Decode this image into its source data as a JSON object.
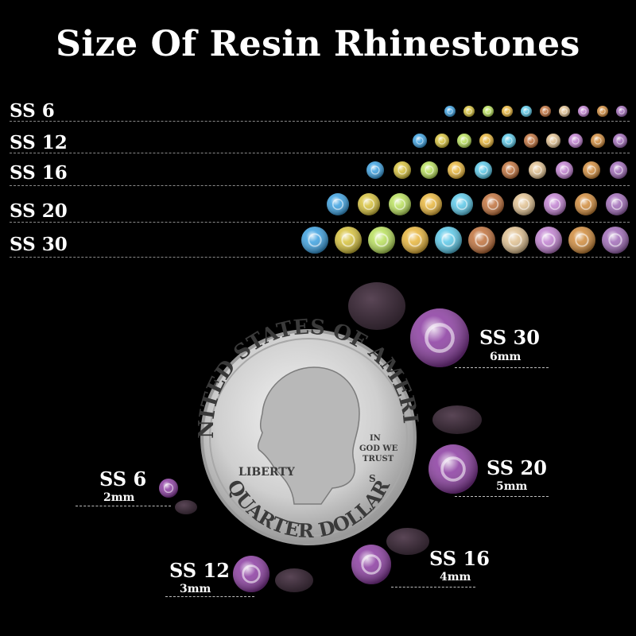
{
  "title": "Size Of Resin Rhinestones",
  "rows": [
    {
      "label": "SS 6"
    },
    {
      "label": "SS 12"
    },
    {
      "label": "SS 16"
    },
    {
      "label": "SS 20"
    },
    {
      "label": "SS 30"
    }
  ],
  "stone_colors": [
    "#3aa0e0",
    "#d6c13a",
    "#b8e05a",
    "#e8b53a",
    "#5ac8e8",
    "#c0703a",
    "#e0c090",
    "#c080d0",
    "#d08a3a",
    "#a06ab8"
  ],
  "stones_per_row": 10,
  "coin": {
    "top_text": "UNITED STATES OF AMERICA",
    "bottom_text": "QUARTER DOLLAR",
    "liberty": "LIBERTY",
    "motto_1": "IN",
    "motto_2": "GOD WE",
    "motto_3": "TRUST",
    "mint": "S"
  },
  "samples": {
    "ss30": {
      "size": "SS 30",
      "mm": "6mm"
    },
    "ss20": {
      "size": "SS 20",
      "mm": "5mm"
    },
    "ss16": {
      "size": "SS 16",
      "mm": "4mm"
    },
    "ss12": {
      "size": "SS 12",
      "mm": "3mm"
    },
    "ss6": {
      "size": "SS 6",
      "mm": "2mm"
    }
  },
  "sample_color": "#8a3aa0"
}
